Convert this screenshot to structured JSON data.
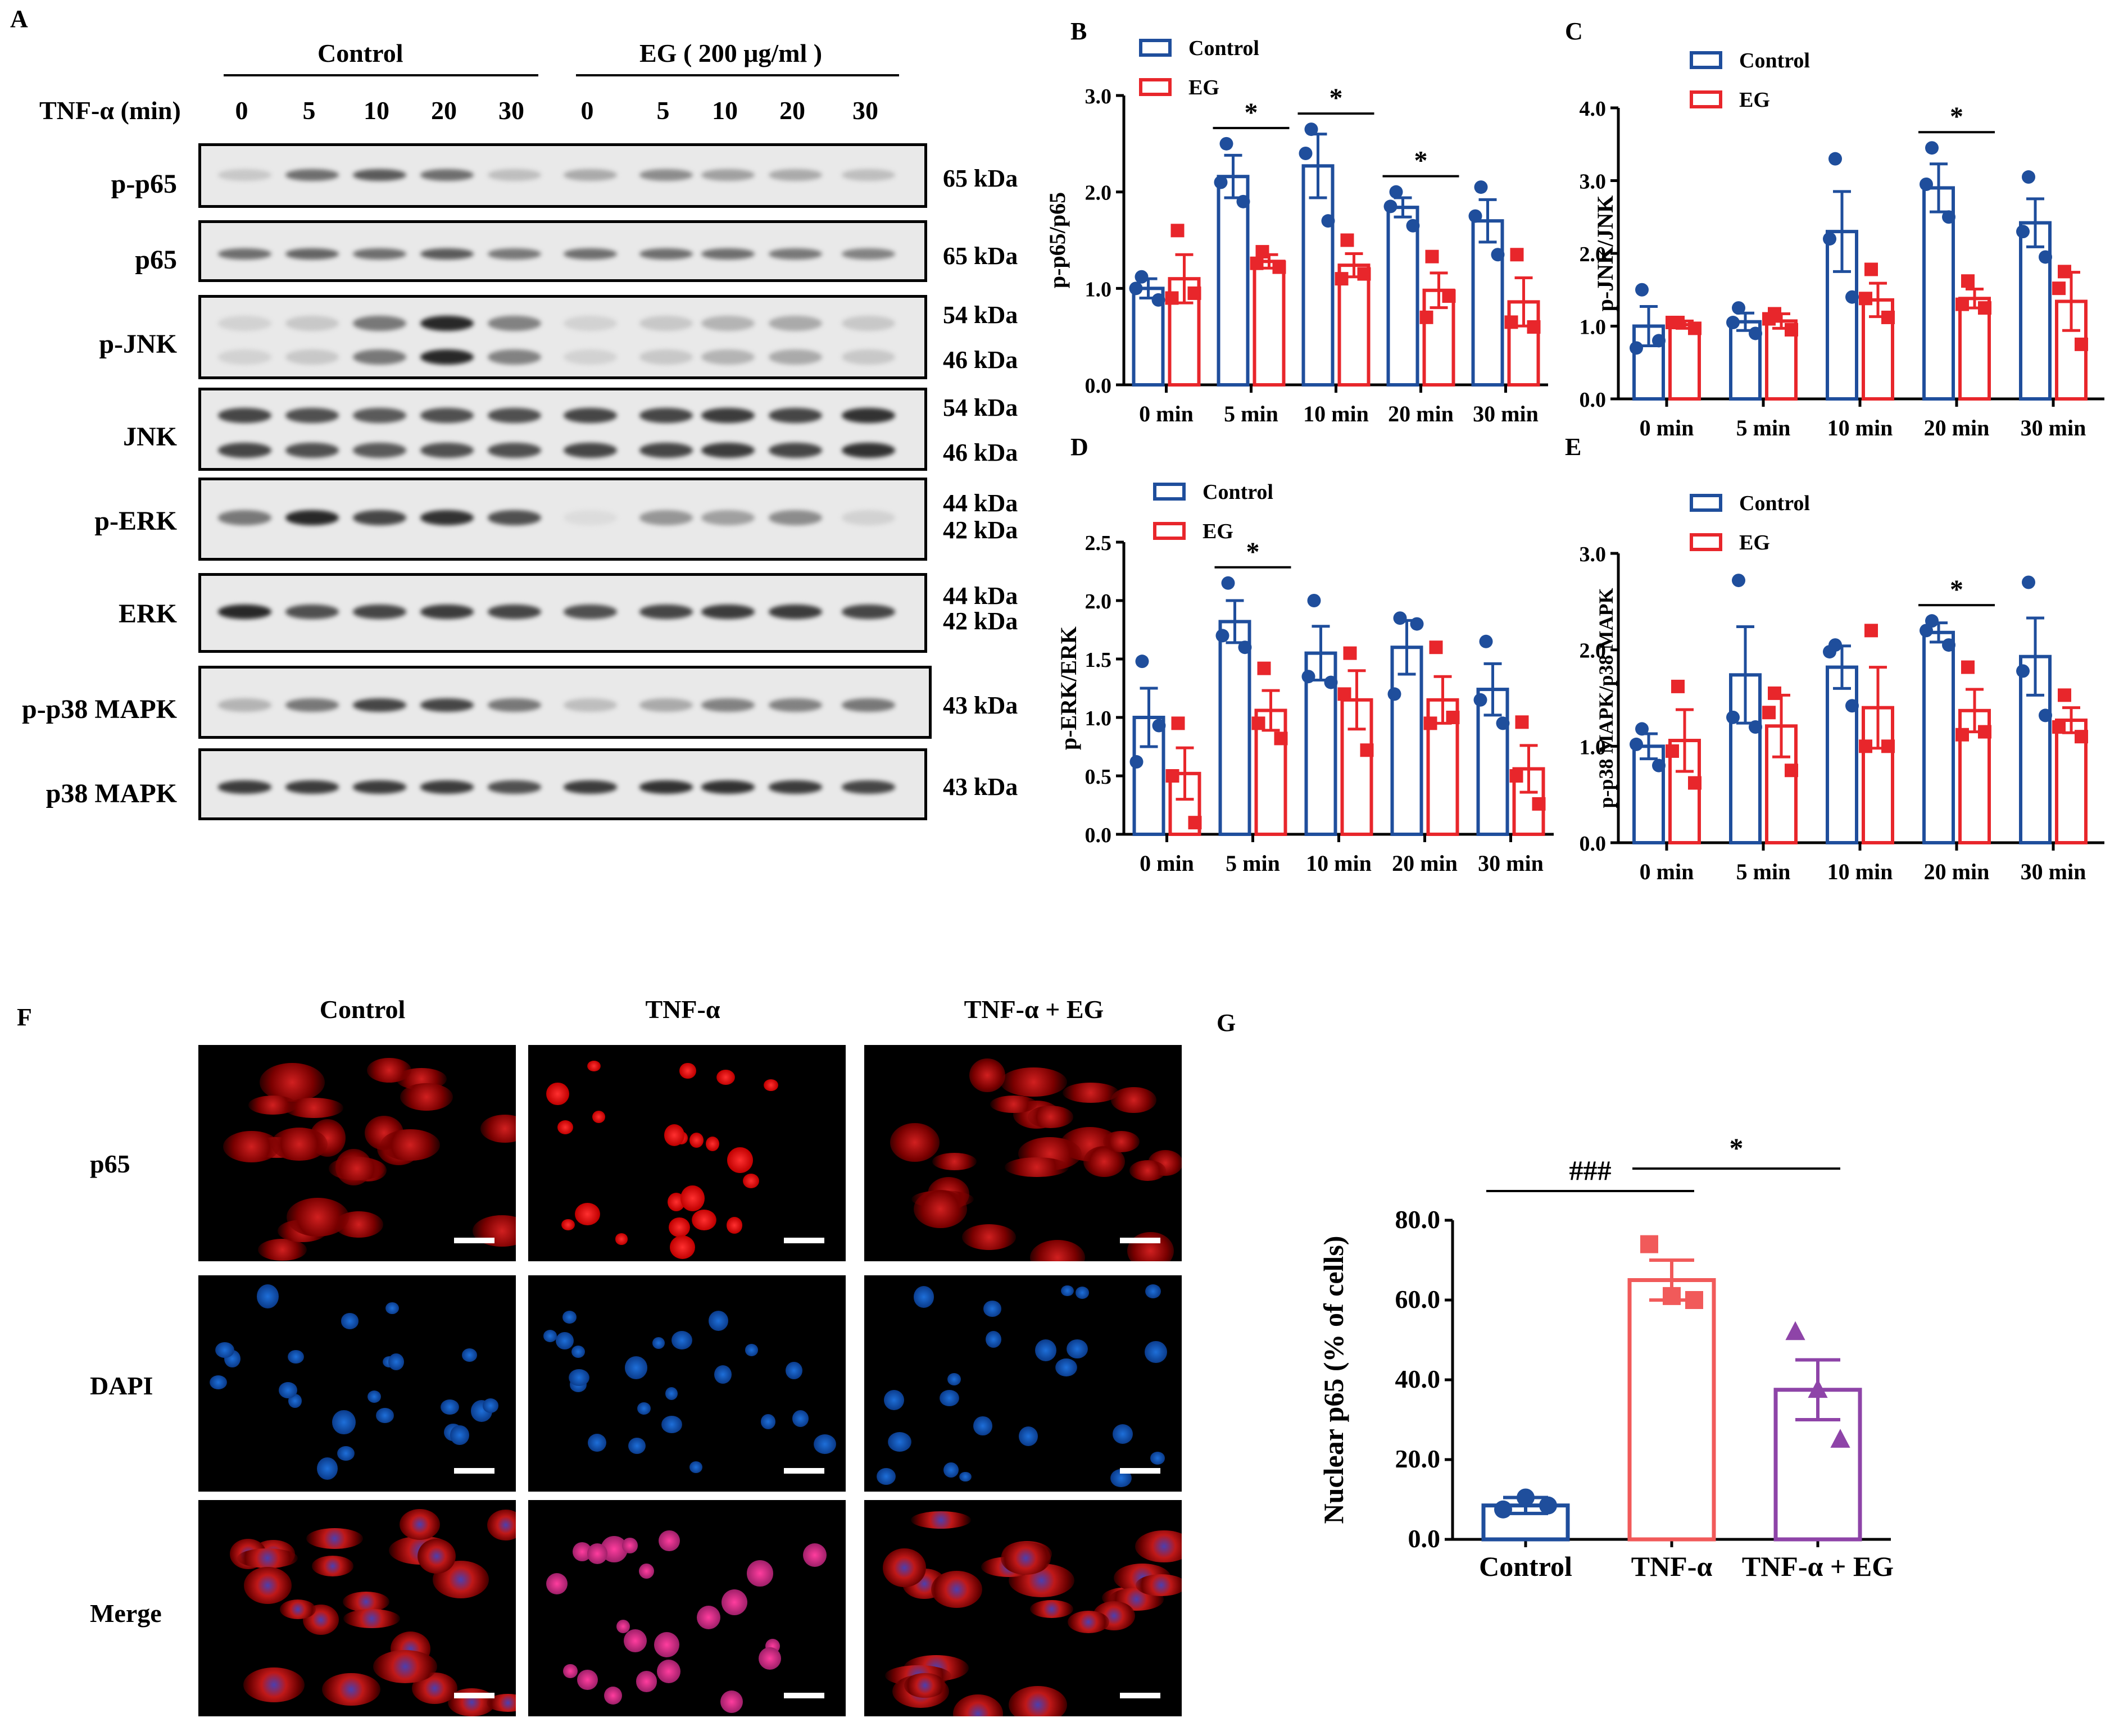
{
  "panels": {
    "A": "A",
    "B": "B",
    "C": "C",
    "D": "D",
    "E": "E",
    "F": "F",
    "G": "G"
  },
  "blot": {
    "group_control": "Control",
    "group_eg": "EG ( 200 μg/ml )",
    "tnf_label": "TNF-α (min)",
    "lanes": [
      "0",
      "5",
      "10",
      "20",
      "30",
      "0",
      "5",
      "10",
      "20",
      "30"
    ],
    "rows": [
      {
        "label": "p-p65",
        "kda": [
          "65 kDa"
        ]
      },
      {
        "label": "p65",
        "kda": [
          "65 kDa"
        ]
      },
      {
        "label": "p-JNK",
        "kda": [
          "54 kDa",
          "46 kDa"
        ]
      },
      {
        "label": "JNK",
        "kda": [
          "54  kDa",
          "46 kDa"
        ]
      },
      {
        "label": "p-ERK",
        "kda": [
          "44 kDa",
          "42 kDa"
        ]
      },
      {
        "label": "ERK",
        "kda": [
          "44 kDa",
          "42 kDa"
        ]
      },
      {
        "label": "p-p38 MAPK",
        "kda": [
          "43 kDa"
        ]
      },
      {
        "label": "p38 MAPK",
        "kda": [
          "43 kDa"
        ]
      }
    ]
  },
  "microscopy": {
    "columns": [
      "Control",
      "TNF-α",
      "TNF-α + EG"
    ],
    "rows": [
      "p65",
      "DAPI",
      "Merge"
    ]
  },
  "colors": {
    "control": "#1f4e9c",
    "eg": "#e8262b",
    "tnf": "#f15a5a",
    "tnf_eg": "#8e44a8"
  },
  "chart_data": [
    {
      "id": "B",
      "type": "bar",
      "ylabel": "p-p65/p65",
      "ylim": [
        0,
        3.0
      ],
      "ticks": [
        "0.0",
        "1.0",
        "2.0",
        "3.0"
      ],
      "categories": [
        "0 min",
        "5 min",
        "10 min",
        "20 min",
        "30 min"
      ],
      "legend": [
        "Control",
        "EG"
      ],
      "series": [
        {
          "name": "Control",
          "values": [
            1.0,
            2.16,
            2.27,
            1.84,
            1.7
          ],
          "sem": [
            0.1,
            0.22,
            0.33,
            0.1,
            0.22
          ],
          "points": [
            [
              1.12,
              0.88,
              1.0
            ],
            [
              2.5,
              1.9,
              2.1
            ],
            [
              2.65,
              1.7,
              2.4
            ],
            [
              2.0,
              1.65,
              1.85
            ],
            [
              2.05,
              1.35,
              1.75
            ]
          ]
        },
        {
          "name": "EG",
          "values": [
            1.1,
            1.28,
            1.24,
            0.98,
            0.86
          ],
          "sem": [
            0.25,
            0.07,
            0.12,
            0.18,
            0.25
          ],
          "points": [
            [
              1.6,
              0.95,
              0.9
            ],
            [
              1.38,
              1.22,
              1.26
            ],
            [
              1.5,
              1.15,
              1.1
            ],
            [
              1.33,
              0.92,
              0.7
            ],
            [
              1.35,
              0.6,
              0.65
            ]
          ]
        }
      ],
      "significance": [
        {
          "category": 1,
          "label": "*"
        },
        {
          "category": 2,
          "label": "*"
        },
        {
          "category": 3,
          "label": "*"
        }
      ]
    },
    {
      "id": "C",
      "type": "bar",
      "ylabel": "p-JNK/JNK",
      "ylim": [
        0,
        4.0
      ],
      "ticks": [
        "0.0",
        "1.0",
        "2.0",
        "3.0",
        "4.0"
      ],
      "categories": [
        "0 min",
        "5 min",
        "10 min",
        "20 min",
        "30 min"
      ],
      "legend": [
        "Control",
        "EG"
      ],
      "series": [
        {
          "name": "Control",
          "values": [
            1.0,
            1.06,
            2.3,
            2.9,
            2.42
          ],
          "sem": [
            0.27,
            0.12,
            0.55,
            0.33,
            0.33
          ],
          "points": [
            [
              1.5,
              0.8,
              0.7
            ],
            [
              1.25,
              0.9,
              1.05
            ],
            [
              3.3,
              1.4,
              2.2
            ],
            [
              3.45,
              2.5,
              2.95
            ],
            [
              3.05,
              1.95,
              2.3
            ]
          ]
        },
        {
          "name": "EG",
          "values": [
            1.02,
            1.07,
            1.36,
            1.38,
            1.34
          ],
          "sem": [
            0.05,
            0.1,
            0.23,
            0.13,
            0.4
          ],
          "points": [
            [
              1.05,
              0.97,
              1.05
            ],
            [
              1.17,
              0.95,
              1.1
            ],
            [
              1.78,
              1.12,
              1.38
            ],
            [
              1.62,
              1.25,
              1.3
            ],
            [
              1.75,
              0.75,
              1.52
            ]
          ]
        }
      ],
      "significance": [
        {
          "category": 3,
          "label": "*"
        }
      ]
    },
    {
      "id": "D",
      "type": "bar",
      "ylabel": "p-ERK/ERK",
      "ylim": [
        0,
        2.5
      ],
      "ticks": [
        "0.0",
        "0.5",
        "1.0",
        "1.5",
        "2.0",
        "2.5"
      ],
      "categories": [
        "0 min",
        "5 min",
        "10 min",
        "20 min",
        "30 min"
      ],
      "legend": [
        "Control",
        "EG"
      ],
      "series": [
        {
          "name": "Control",
          "values": [
            1.0,
            1.82,
            1.55,
            1.6,
            1.24
          ],
          "sem": [
            0.25,
            0.18,
            0.23,
            0.23,
            0.22
          ],
          "points": [
            [
              1.48,
              0.93,
              0.62
            ],
            [
              2.15,
              1.6,
              1.7
            ],
            [
              2.0,
              1.3,
              1.35
            ],
            [
              1.85,
              1.8,
              1.2
            ],
            [
              1.65,
              0.95,
              1.15
            ]
          ]
        },
        {
          "name": "EG",
          "values": [
            0.52,
            1.06,
            1.15,
            1.15,
            0.56
          ],
          "sem": [
            0.22,
            0.17,
            0.25,
            0.2,
            0.2
          ],
          "points": [
            [
              0.95,
              0.1,
              0.5
            ],
            [
              1.42,
              0.82,
              0.95
            ],
            [
              1.55,
              0.72,
              1.2
            ],
            [
              1.6,
              1.0,
              0.95
            ],
            [
              0.96,
              0.26,
              0.5
            ]
          ]
        }
      ],
      "significance": [
        {
          "category": 1,
          "label": "*"
        }
      ]
    },
    {
      "id": "E",
      "type": "bar",
      "ylabel": "p-p38 MAPK/p38 MAPK",
      "ylim": [
        0,
        3.0
      ],
      "ticks": [
        "0.0",
        "1.0",
        "2.0",
        "3.0"
      ],
      "categories": [
        "0 min",
        "5 min",
        "10 min",
        "20 min",
        "30 min"
      ],
      "legend": [
        "Control",
        "EG"
      ],
      "series": [
        {
          "name": "Control",
          "values": [
            1.0,
            1.74,
            1.82,
            2.18,
            1.93
          ],
          "sem": [
            0.13,
            0.5,
            0.22,
            0.1,
            0.4
          ],
          "points": [
            [
              1.18,
              0.8,
              1.02
            ],
            [
              2.72,
              1.2,
              1.3
            ],
            [
              2.05,
              1.42,
              1.98
            ],
            [
              2.3,
              2.05,
              2.2
            ],
            [
              2.7,
              1.32,
              1.78
            ]
          ]
        },
        {
          "name": "EG",
          "values": [
            1.06,
            1.21,
            1.4,
            1.37,
            1.27
          ],
          "sem": [
            0.32,
            0.32,
            0.42,
            0.22,
            0.13
          ],
          "points": [
            [
              1.62,
              0.62,
              0.95
            ],
            [
              1.55,
              0.75,
              1.35
            ],
            [
              2.2,
              1.0,
              1.0
            ],
            [
              1.82,
              1.15,
              1.12
            ],
            [
              1.53,
              1.1,
              1.2
            ]
          ]
        }
      ],
      "significance": [
        {
          "category": 3,
          "label": "*"
        }
      ]
    },
    {
      "id": "G",
      "type": "bar",
      "ylabel": "Nuclear p65  (% of cells)",
      "ylim": [
        0,
        80
      ],
      "ticks": [
        "0.0",
        "20.0",
        "40.0",
        "60.0",
        "80.0"
      ],
      "categories": [
        "Control",
        "TNF-α",
        "TNF-α + EG"
      ],
      "series": [
        {
          "name": "Nuclear p65",
          "values": [
            8.5,
            65.0,
            37.5
          ],
          "sem": [
            2.0,
            5.0,
            7.5
          ],
          "points": [
            [
              7.5,
              10.5,
              8.5
            ],
            [
              74.0,
              61.0,
              60.0
            ],
            [
              52.0,
              37.5,
              25.0
            ]
          ]
        }
      ],
      "significance": [
        {
          "from": 0,
          "to": 1,
          "label": "###"
        },
        {
          "from": 1,
          "to": 2,
          "label": "*"
        }
      ]
    }
  ]
}
